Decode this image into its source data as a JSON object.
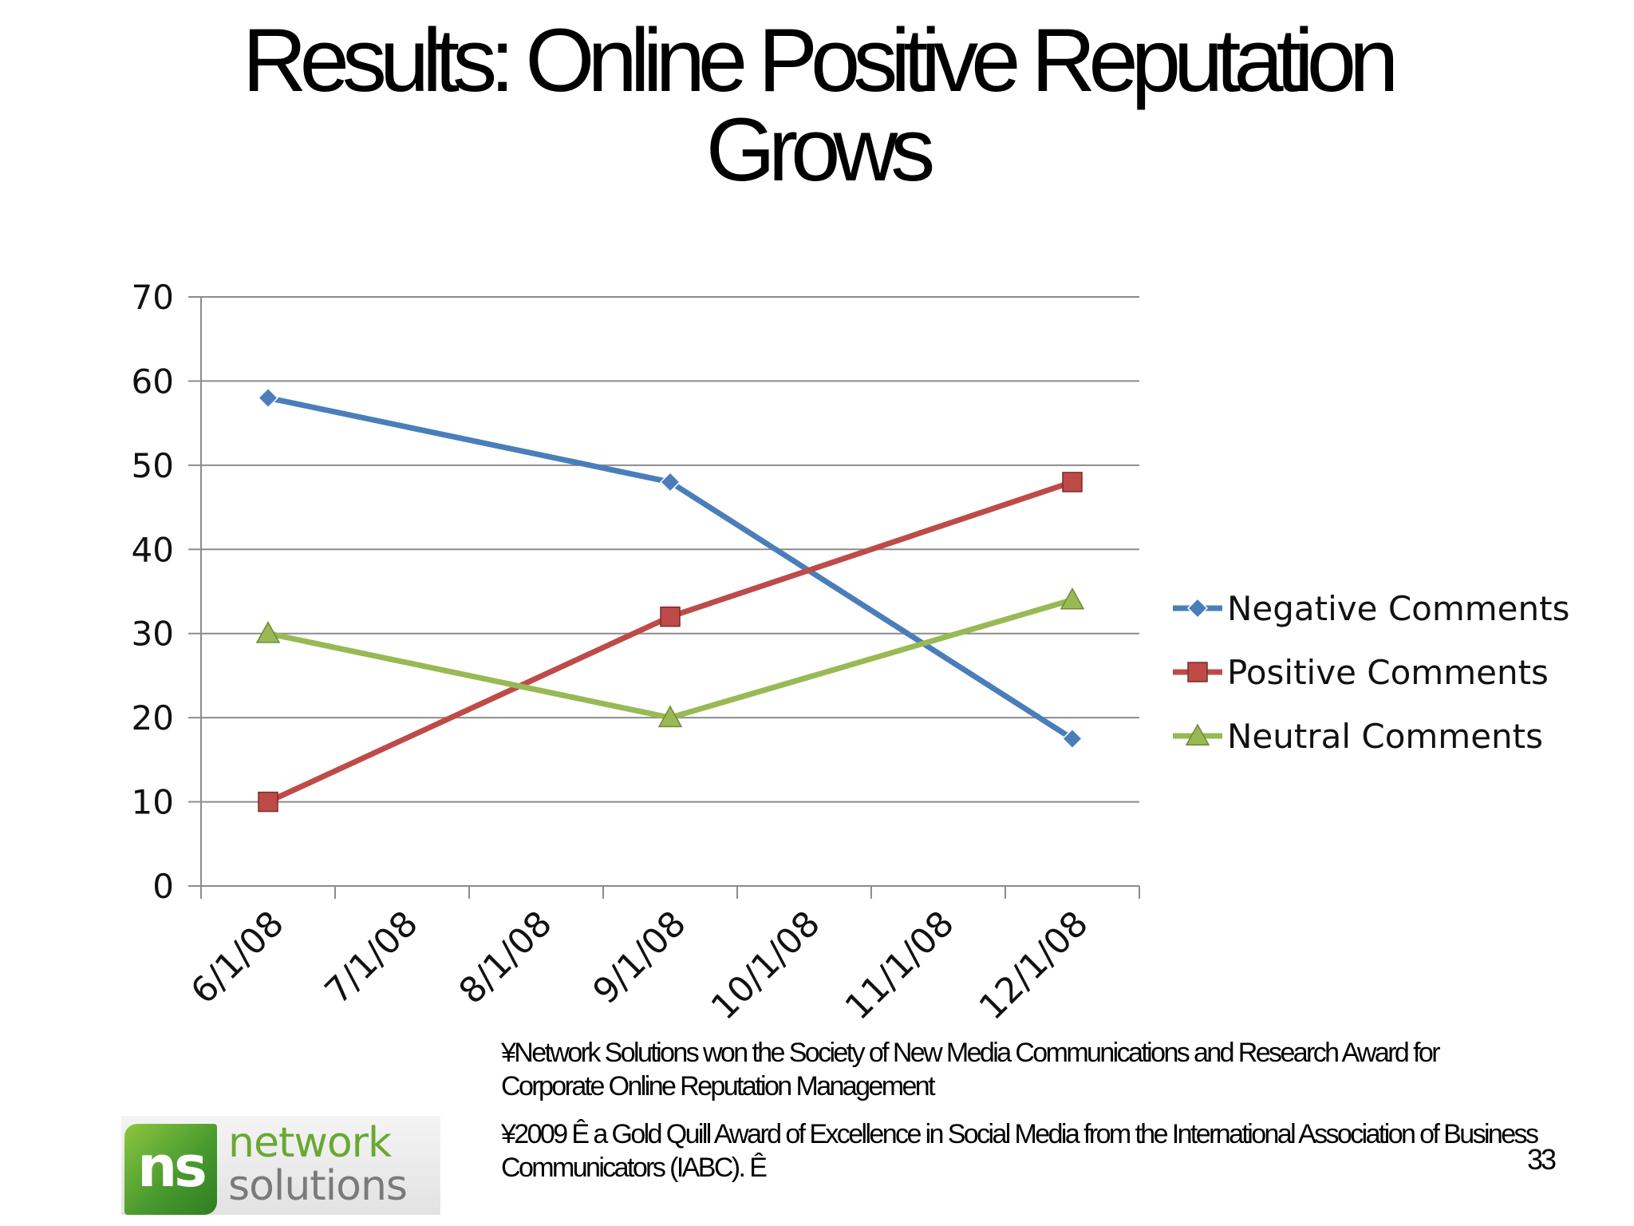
{
  "slide": {
    "title_line1": "Results: Online Positive Reputation",
    "title_line2": "Grows",
    "notes": [
      "¥Network Solutions won the Society of New Media Communications and Research Award for Corporate Online Reputation Management",
      "¥2009 Ê a Gold Quill Award of Excellence in Social Media from the International Association of Business Communicators (IABC). Ê"
    ],
    "page_number": "33",
    "logo": {
      "mark": "ns",
      "word1": "network",
      "word2": "solutions",
      "colors": {
        "green": "#6aa832",
        "gray": "#7a7a7a"
      }
    }
  },
  "chart_data": {
    "type": "line",
    "title": "",
    "xlabel": "",
    "ylabel": "",
    "categories": [
      "6/1/08",
      "7/1/08",
      "8/1/08",
      "9/1/08",
      "10/1/08",
      "11/1/08",
      "12/1/08"
    ],
    "ylim": [
      0,
      70
    ],
    "yticks": [
      0,
      10,
      20,
      30,
      40,
      50,
      60,
      70
    ],
    "grid": true,
    "legend_position": "right",
    "series": [
      {
        "name": "Negative Comments",
        "color": "#4a7ebb",
        "marker": "diamond",
        "points": [
          {
            "x": "6/1/08",
            "y": 58
          },
          {
            "x": "9/1/08",
            "y": 48
          },
          {
            "x": "12/1/08",
            "y": 17.5
          }
        ]
      },
      {
        "name": "Positive Comments",
        "color": "#be4b48",
        "marker": "square",
        "points": [
          {
            "x": "6/1/08",
            "y": 10
          },
          {
            "x": "9/1/08",
            "y": 32
          },
          {
            "x": "12/1/08",
            "y": 48
          }
        ]
      },
      {
        "name": "Neutral Comments",
        "color": "#98b954",
        "marker": "triangle",
        "points": [
          {
            "x": "6/1/08",
            "y": 30
          },
          {
            "x": "9/1/08",
            "y": 20
          },
          {
            "x": "12/1/08",
            "y": 34
          }
        ]
      }
    ]
  }
}
